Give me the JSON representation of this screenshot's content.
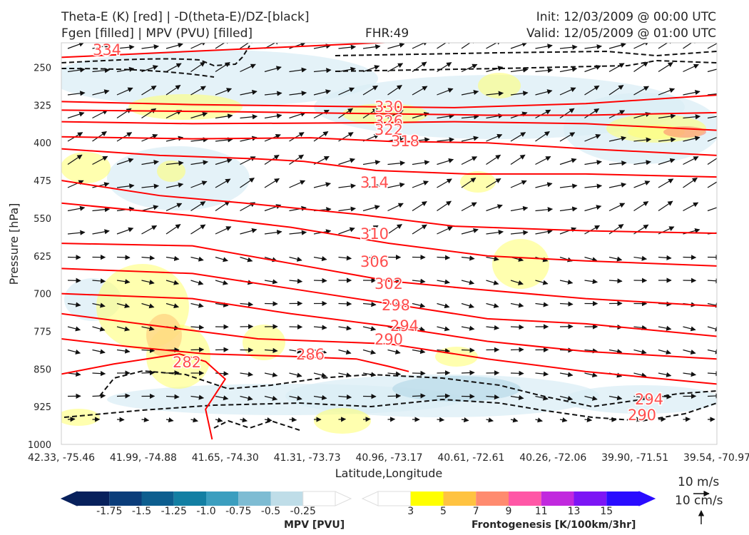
{
  "header": {
    "title_line1": "Theta-E (K) [red] | -D(theta-E)/DZ-[black]",
    "title_line2": "Fgen [filled] | MPV (PVU) [filled]",
    "fhr": "FHR:49",
    "init": "Init: 12/03/2009 @ 00:00 UTC",
    "valid": "Valid: 12/05/2009 @ 01:00 UTC"
  },
  "chart_data": {
    "type": "cross-section",
    "ylabel": "Pressure [hPa]",
    "xlabel": "Latitude,Longitude",
    "y_ticks": [
      250,
      325,
      400,
      475,
      550,
      625,
      700,
      775,
      850,
      925,
      1000
    ],
    "ylim": [
      1000,
      200
    ],
    "x_ticks": [
      "42.33, -75.46",
      "41.99, -74.88",
      "41.65, -74.30",
      "41.31, -73.73",
      "40.96, -73.17",
      "40.61, -72.61",
      "40.26, -72.06",
      "39.90, -71.51",
      "39.54, -70.97"
    ],
    "theta_e_contour_labels": [
      "334",
      "330",
      "326",
      "322",
      "318",
      "314",
      "310",
      "306",
      "302",
      "298",
      "294",
      "290",
      "286",
      "282",
      "290",
      "294"
    ],
    "theta_e_contours": [
      {
        "value": 334,
        "p": [
          [
            0,
            230
          ],
          [
            0.5,
            200
          ]
        ]
      },
      {
        "value": 330,
        "p": [
          [
            0,
            318
          ],
          [
            0.2,
            324
          ],
          [
            0.45,
            328
          ],
          [
            0.6,
            330
          ],
          [
            0.8,
            322
          ],
          [
            1,
            305
          ]
        ]
      },
      {
        "value": 326,
        "p": [
          [
            0,
            335
          ],
          [
            0.25,
            338
          ],
          [
            0.48,
            342
          ],
          [
            0.65,
            345
          ],
          [
            0.8,
            345
          ],
          [
            1,
            340
          ]
        ]
      },
      {
        "value": 322,
        "p": [
          [
            0,
            358
          ],
          [
            0.2,
            362
          ],
          [
            0.48,
            360
          ],
          [
            0.6,
            358
          ],
          [
            0.8,
            362
          ],
          [
            1,
            375
          ]
        ]
      },
      {
        "value": 318,
        "p": [
          [
            0,
            388
          ],
          [
            0.2,
            392
          ],
          [
            0.38,
            390
          ],
          [
            0.5,
            397
          ],
          [
            0.65,
            400
          ],
          [
            0.8,
            412
          ],
          [
            1,
            425
          ]
        ]
      },
      {
        "value": 314,
        "p": [
          [
            0,
            412
          ],
          [
            0.15,
            425
          ],
          [
            0.3,
            432
          ],
          [
            0.37,
            437
          ],
          [
            0.48,
            455
          ],
          [
            0.62,
            462
          ],
          [
            0.8,
            462
          ],
          [
            1,
            468
          ]
        ]
      },
      {
        "value": 310,
        "p": [
          [
            0,
            475
          ],
          [
            0.15,
            505
          ],
          [
            0.28,
            520
          ],
          [
            0.45,
            542
          ],
          [
            0.6,
            566
          ],
          [
            0.8,
            575
          ],
          [
            1,
            580
          ]
        ]
      },
      {
        "value": 306,
        "p": [
          [
            0,
            520
          ],
          [
            0.2,
            545
          ],
          [
            0.35,
            568
          ],
          [
            0.5,
            600
          ],
          [
            0.65,
            625
          ],
          [
            0.8,
            635
          ],
          [
            1,
            645
          ]
        ]
      },
      {
        "value": 302,
        "p": [
          [
            0,
            600
          ],
          [
            0.2,
            605
          ],
          [
            0.35,
            640
          ],
          [
            0.5,
            675
          ],
          [
            0.62,
            690
          ],
          [
            0.8,
            710
          ],
          [
            1,
            725
          ]
        ]
      },
      {
        "value": 298,
        "p": [
          [
            0,
            650
          ],
          [
            0.2,
            660
          ],
          [
            0.35,
            690
          ],
          [
            0.5,
            720
          ],
          [
            0.65,
            750
          ],
          [
            0.8,
            760
          ],
          [
            1,
            785
          ]
        ]
      },
      {
        "value": 294,
        "p": [
          [
            0,
            700
          ],
          [
            0.2,
            710
          ],
          [
            0.35,
            740
          ],
          [
            0.5,
            765
          ],
          [
            0.65,
            795
          ],
          [
            0.8,
            815
          ],
          [
            1,
            830
          ]
        ]
      },
      {
        "value": 290,
        "p": [
          [
            0,
            740
          ],
          [
            0.15,
            765
          ],
          [
            0.3,
            790
          ],
          [
            0.5,
            800
          ],
          [
            0.65,
            830
          ],
          [
            0.8,
            855
          ],
          [
            1,
            880
          ]
        ]
      },
      {
        "value": 286,
        "p": [
          [
            0,
            790
          ],
          [
            0.1,
            805
          ],
          [
            0.22,
            820
          ],
          [
            0.35,
            825
          ],
          [
            0.45,
            830
          ],
          [
            0.5,
            845
          ],
          [
            0.53,
            855
          ]
        ]
      },
      {
        "value": 282,
        "p": [
          [
            0,
            860
          ],
          [
            0.08,
            840
          ],
          [
            0.18,
            820
          ],
          [
            0.22,
            835
          ],
          [
            0.25,
            870
          ],
          [
            0.22,
            930
          ],
          [
            0.23,
            990
          ]
        ]
      }
    ],
    "fgen_colorbar": {
      "label": "Frontogenesis [K/100km/3hr]",
      "ticks": [
        "3",
        "5",
        "7",
        "9",
        "11",
        "13",
        "15"
      ],
      "colors": [
        "#ffff00",
        "#ffc341",
        "#ff8b6f",
        "#ff57a6",
        "#c129de",
        "#7c16f5",
        "#2a0cff"
      ]
    },
    "mpv_colorbar": {
      "label": "MPV [PVU]",
      "ticks": [
        "-1.75",
        "-1.5",
        "-1.25",
        "-1.0",
        "-0.75",
        "-0.5",
        "-0.25"
      ],
      "colors": [
        "#08215c",
        "#0b3d7a",
        "#0d5e8f",
        "#137fa3",
        "#3b9ebf",
        "#7ebcd3",
        "#bfdde8"
      ]
    }
  },
  "wind_legend": {
    "horizontal": "10 m/s",
    "vertical": "10 cm/s"
  }
}
